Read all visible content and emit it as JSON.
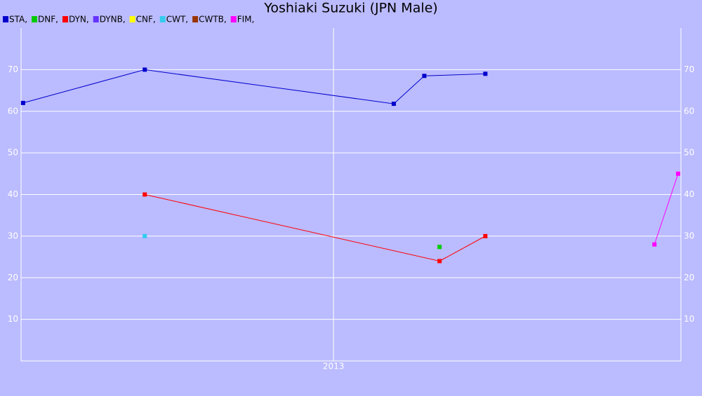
{
  "chart_data": {
    "type": "line",
    "title": "Yoshiaki Suzuki (JPN Male)",
    "series": [
      {
        "name": "STA,",
        "color": "#0000cc",
        "x": [
          2012.227,
          2012.53,
          2013.15,
          2013.226,
          2013.378
        ],
        "values": [
          62,
          70,
          61.8,
          68.5,
          69
        ]
      },
      {
        "name": "DNF,",
        "color": "#00cc00",
        "x": [
          2013.264
        ],
        "values": [
          27.4
        ]
      },
      {
        "name": "DYN,",
        "color": "#ff0000",
        "x": [
          2012.53,
          2013.264,
          2013.378
        ],
        "values": [
          40,
          24,
          30
        ]
      },
      {
        "name": "DYNB,",
        "color": "#6633ff",
        "x": [],
        "values": []
      },
      {
        "name": "CNF,",
        "color": "#ffff00",
        "x": [],
        "values": []
      },
      {
        "name": "CWT,",
        "color": "#33ccee",
        "x": [
          2012.53
        ],
        "values": [
          30
        ]
      },
      {
        "name": "CWTB,",
        "color": "#993300",
        "x": [],
        "values": []
      },
      {
        "name": "FIM,",
        "color": "#ff00ff",
        "x": [
          2013.799,
          2013.858
        ],
        "values": [
          28,
          45
        ]
      }
    ],
    "xlim": [
      2012.222,
      2013.865
    ],
    "xticks": [
      {
        "value": 2013,
        "label": "2013"
      }
    ],
    "ylim": [
      0,
      80
    ],
    "yticks": [
      10,
      20,
      30,
      40,
      50,
      60,
      70
    ],
    "grid": true
  }
}
